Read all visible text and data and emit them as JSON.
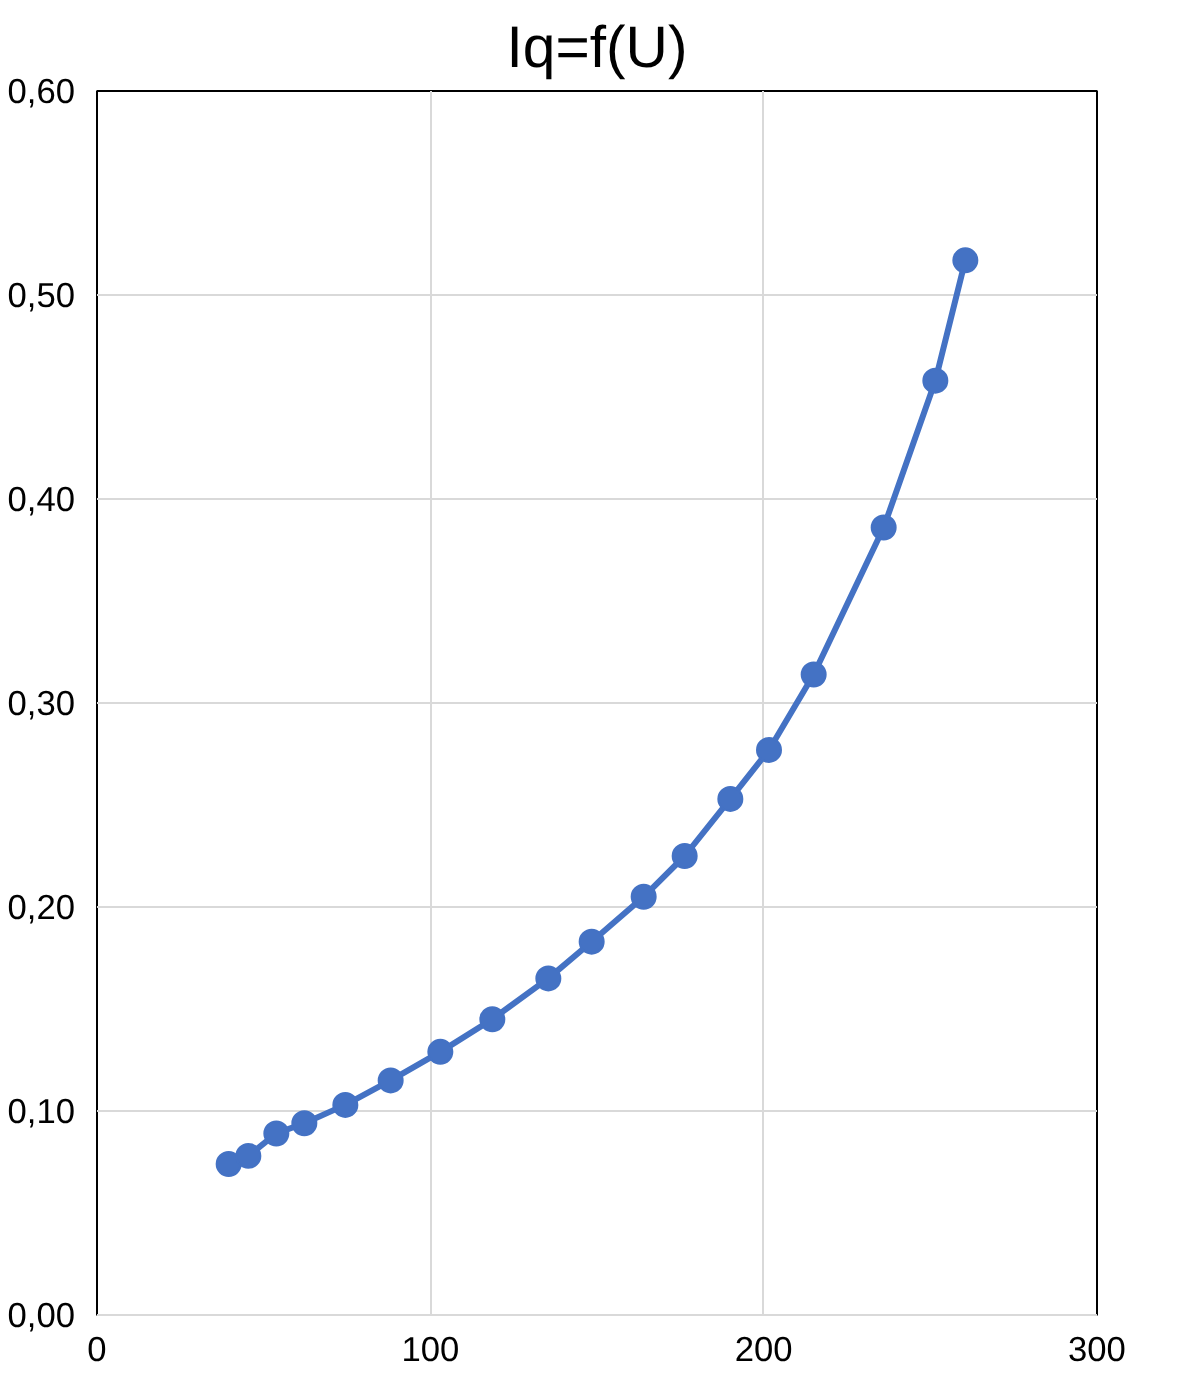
{
  "chart_data": {
    "type": "line",
    "title": "Iq=f(U)",
    "marker": "circle",
    "grid": true,
    "xlim": [
      0,
      300
    ],
    "xticks": [
      0,
      100,
      200,
      300
    ],
    "ylim": [
      0,
      0.6
    ],
    "yticks": [
      {
        "value": 0,
        "label": "0,00"
      },
      {
        "value": 0.1,
        "label": "0,10"
      },
      {
        "value": 0.2,
        "label": "0,20"
      },
      {
        "value": 0.3,
        "label": "0,30"
      },
      {
        "value": 0.4,
        "label": "0,40"
      },
      {
        "value": 0.5,
        "label": "0,50"
      },
      {
        "value": 0.6,
        "label": "0,60"
      }
    ],
    "x": [
      39.5,
      45.4,
      53.8,
      62.2,
      74.5,
      88.1,
      103,
      118.6,
      135.4,
      148.4,
      164,
      176.3,
      190,
      201.6,
      215,
      236,
      251.5,
      260.5
    ],
    "series": [
      {
        "color": "#4472c4",
        "values": [
          0.074,
          0.078,
          0.089,
          0.094,
          0.103,
          0.115,
          0.129,
          0.145,
          0.165,
          0.183,
          0.205,
          0.225,
          0.253,
          0.277,
          0.314,
          0.386,
          0.458,
          0.517
        ]
      }
    ]
  }
}
